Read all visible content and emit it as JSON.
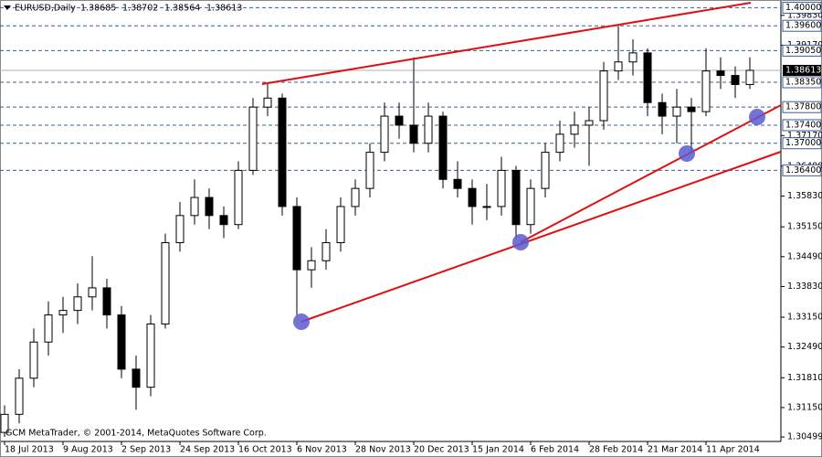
{
  "chart_data": {
    "type": "candlestick",
    "title": "EURUSD,Daily",
    "quote": [
      1.38685,
      1.38702,
      1.38564,
      1.38613
    ],
    "footer": "GCM MetaTrader, © 2001-2014, MetaQuotes Software Corp.",
    "categories": [
      "18 Jul 2013",
      null,
      null,
      null,
      "9 Aug 2013",
      null,
      null,
      null,
      "2 Sep 2013",
      null,
      null,
      null,
      "24 Sep 2013",
      null,
      null,
      null,
      "16 Oct 2013",
      null,
      null,
      null,
      "6 Nov 2013",
      null,
      null,
      null,
      "28 Nov 2013",
      null,
      null,
      null,
      "20 Dec 2013",
      null,
      null,
      null,
      "15 Jan 2014",
      null,
      null,
      null,
      "6 Feb 2014",
      null,
      null,
      null,
      "28 Feb 2014",
      null,
      null,
      null,
      "21 Mar 2014",
      null,
      null,
      null,
      "11 Apr 2014",
      null,
      null,
      null
    ],
    "open": [
      1.306,
      1.31,
      1.318,
      1.326,
      1.332,
      1.333,
      1.336,
      1.338,
      1.332,
      1.32,
      1.316,
      1.33,
      1.348,
      1.354,
      1.358,
      1.354,
      1.352,
      1.364,
      1.378,
      1.38,
      1.356,
      1.342,
      1.344,
      1.348,
      1.356,
      1.36,
      1.368,
      1.376,
      1.374,
      1.37,
      1.376,
      1.362,
      1.36,
      1.356,
      1.356,
      1.364,
      1.352,
      1.36,
      1.368,
      1.372,
      1.374,
      1.375,
      1.386,
      1.388,
      1.39,
      1.379,
      1.376,
      1.378,
      1.377,
      1.386,
      1.385,
      1.383
    ],
    "high": [
      1.312,
      1.32,
      1.329,
      1.335,
      1.336,
      1.339,
      1.345,
      1.34,
      1.334,
      1.323,
      1.332,
      1.35,
      1.357,
      1.362,
      1.36,
      1.356,
      1.366,
      1.38,
      1.3835,
      1.381,
      1.358,
      1.347,
      1.351,
      1.358,
      1.362,
      1.37,
      1.379,
      1.379,
      1.389,
      1.379,
      1.377,
      1.366,
      1.362,
      1.361,
      1.367,
      1.365,
      1.362,
      1.37,
      1.375,
      1.377,
      1.378,
      1.388,
      1.396,
      1.393,
      1.391,
      1.381,
      1.382,
      1.38,
      1.391,
      1.389,
      1.387,
      1.389
    ],
    "low": [
      1.305,
      1.308,
      1.316,
      1.323,
      1.328,
      1.33,
      1.333,
      1.329,
      1.318,
      1.311,
      1.314,
      1.329,
      1.346,
      1.352,
      1.351,
      1.349,
      1.351,
      1.363,
      1.376,
      1.354,
      1.332,
      1.338,
      1.342,
      1.346,
      1.354,
      1.358,
      1.366,
      1.371,
      1.368,
      1.368,
      1.36,
      1.358,
      1.352,
      1.353,
      1.354,
      1.349,
      1.35,
      1.358,
      1.366,
      1.369,
      1.365,
      1.373,
      1.384,
      1.385,
      1.376,
      1.372,
      1.37,
      1.368,
      1.376,
      1.382,
      1.38,
      1.382
    ],
    "close": [
      1.31,
      1.318,
      1.326,
      1.332,
      1.333,
      1.336,
      1.338,
      1.332,
      1.32,
      1.316,
      1.33,
      1.348,
      1.354,
      1.358,
      1.354,
      1.352,
      1.364,
      1.378,
      1.38,
      1.356,
      1.342,
      1.344,
      1.348,
      1.356,
      1.36,
      1.368,
      1.376,
      1.374,
      1.37,
      1.376,
      1.362,
      1.36,
      1.356,
      1.356,
      1.364,
      1.352,
      1.36,
      1.368,
      1.372,
      1.374,
      1.375,
      1.386,
      1.388,
      1.39,
      1.379,
      1.376,
      1.378,
      1.377,
      1.386,
      1.385,
      1.383,
      1.38613
    ],
    "ylim": [
      1.3042,
      1.4013
    ],
    "yticks": [
      {
        "value": 1.3983,
        "label": "1.39830"
      },
      {
        "value": 1.3917,
        "label": "1.39170"
      },
      {
        "value": 1.3717,
        "label": "1.37170"
      },
      {
        "value": 1.3649,
        "label": "1.36490"
      },
      {
        "value": 1.3583,
        "label": "1.35830"
      },
      {
        "value": 1.3515,
        "label": "1.35150"
      },
      {
        "value": 1.3449,
        "label": "1.34490"
      },
      {
        "value": 1.3383,
        "label": "1.33830"
      },
      {
        "value": 1.3315,
        "label": "1.33150"
      },
      {
        "value": 1.3249,
        "label": "1.32490"
      },
      {
        "value": 1.3181,
        "label": "1.31810"
      },
      {
        "value": 1.3115,
        "label": "1.31150"
      },
      {
        "value": 1.30499,
        "label": "1.30499"
      }
    ],
    "levels": [
      {
        "value": 1.4,
        "label": "1.40000"
      },
      {
        "value": 1.396,
        "label": "1.39600"
      },
      {
        "value": 1.3905,
        "label": "1.39050"
      },
      {
        "value": 1.3835,
        "label": "1.38350"
      },
      {
        "value": 1.378,
        "label": "1.37800"
      },
      {
        "value": 1.374,
        "label": "1.37400"
      },
      {
        "value": 1.37,
        "label": "1.37000"
      },
      {
        "value": 1.364,
        "label": "1.36400"
      }
    ],
    "current_price": 1.38613
  }
}
